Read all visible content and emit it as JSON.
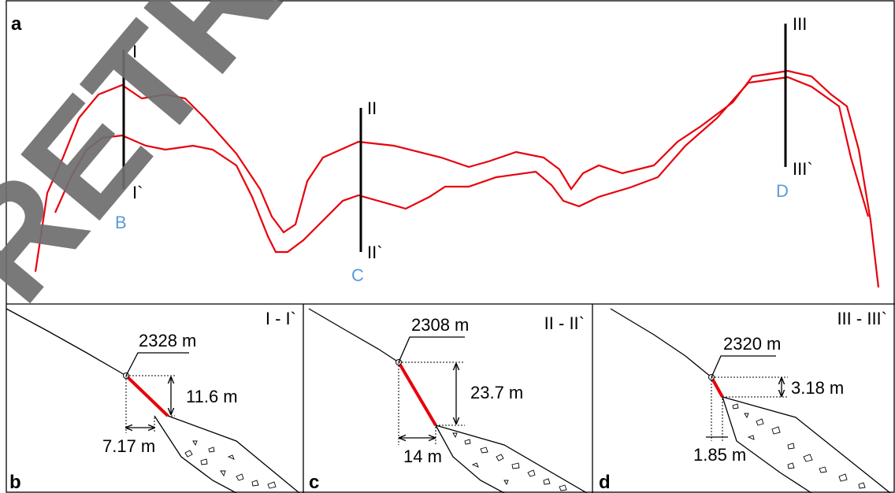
{
  "watermark": "RETRACTED",
  "map": {
    "label": "a",
    "sections": [
      {
        "start": "I",
        "end": "I`"
      },
      {
        "start": "II",
        "end": "II`"
      },
      {
        "start": "III",
        "end": "III`"
      }
    ],
    "points": [
      "B",
      "C",
      "D"
    ]
  },
  "profiles": [
    {
      "label": "b",
      "title": "I - I`",
      "elevation": "2328 m",
      "height": "11.6 m",
      "width": "7.17 m"
    },
    {
      "label": "c",
      "title": "II - II`",
      "elevation": "2308 m",
      "height": "23.7 m",
      "width": "14 m"
    },
    {
      "label": "d",
      "title": "III - III`",
      "elevation": "2320 m",
      "height": "3.18 m",
      "width": "1.85 m"
    }
  ]
}
